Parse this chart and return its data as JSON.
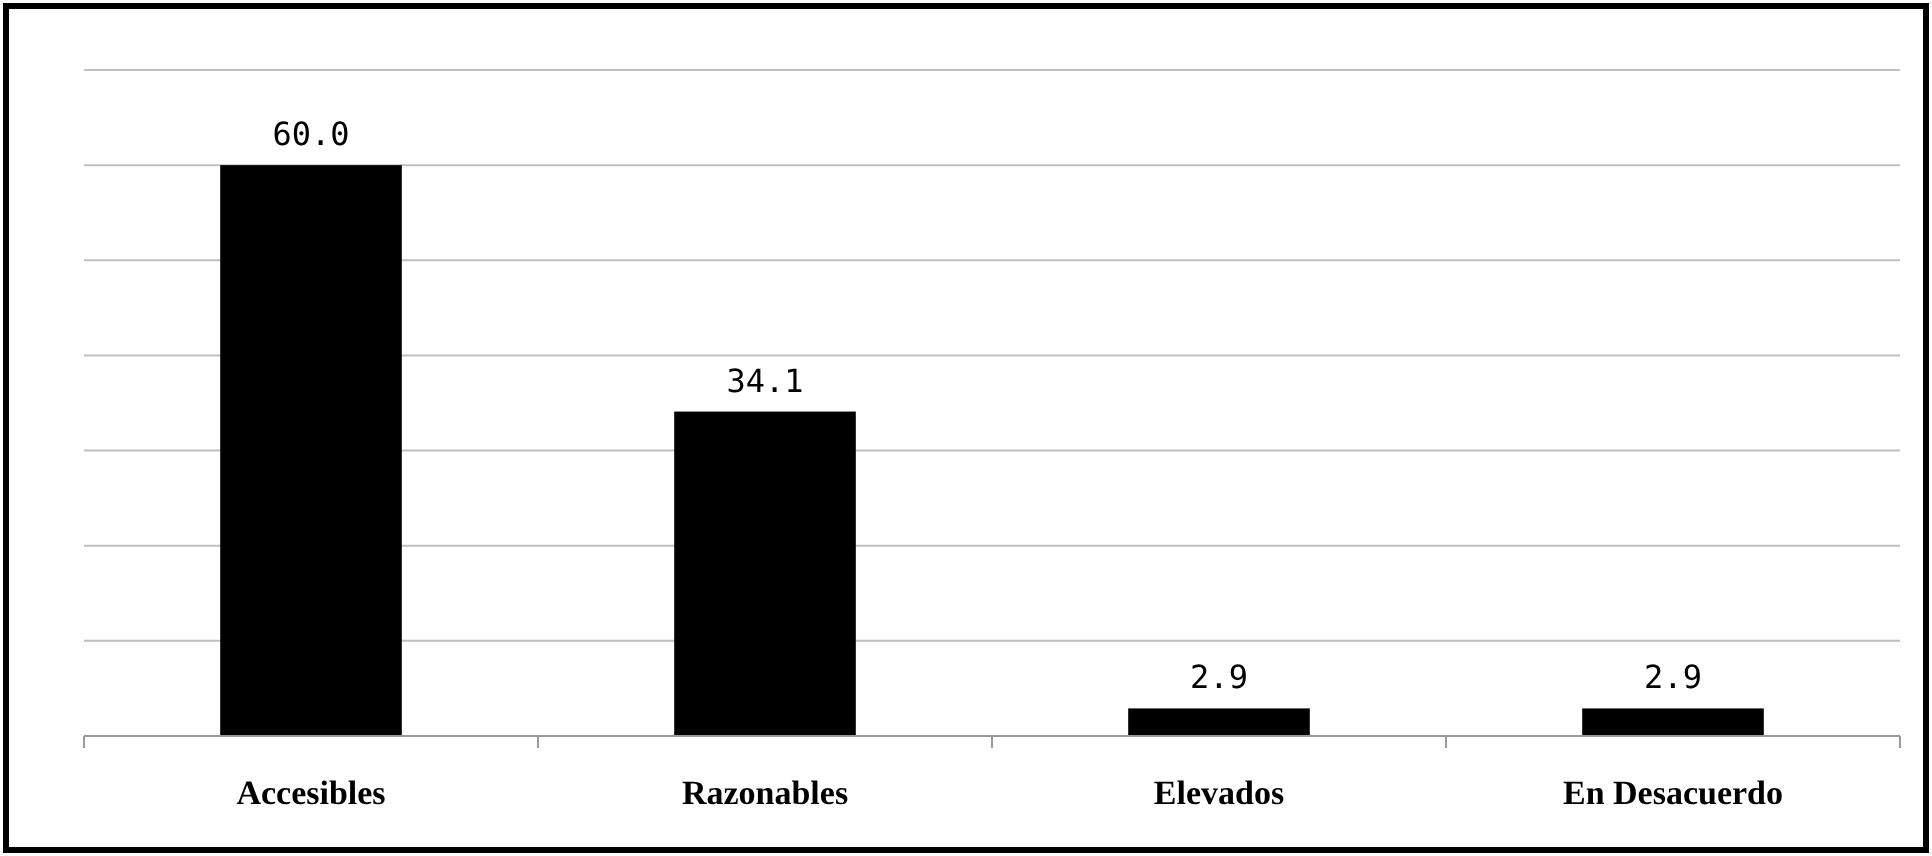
{
  "chart_data": {
    "type": "bar",
    "categories": [
      "Accesibles",
      "Razonables",
      "Elevados",
      "En Desacuerdo"
    ],
    "values": [
      60.0,
      34.1,
      2.9,
      2.9
    ],
    "value_labels": [
      "60.0",
      "34.1",
      "2.9",
      "2.9"
    ],
    "color": "#000000",
    "ylim": [
      0,
      70
    ],
    "yticks": [
      {
        "value": 0,
        "label": null
      },
      {
        "value": 10,
        "label": null
      },
      {
        "value": 20,
        "label": null
      },
      {
        "value": 30,
        "label": null
      },
      {
        "value": 40,
        "label": null
      },
      {
        "value": 50,
        "label": null
      },
      {
        "value": 60,
        "label": null
      },
      {
        "value": 70,
        "label": null
      }
    ],
    "grid": "y",
    "tick_labels": "x"
  }
}
